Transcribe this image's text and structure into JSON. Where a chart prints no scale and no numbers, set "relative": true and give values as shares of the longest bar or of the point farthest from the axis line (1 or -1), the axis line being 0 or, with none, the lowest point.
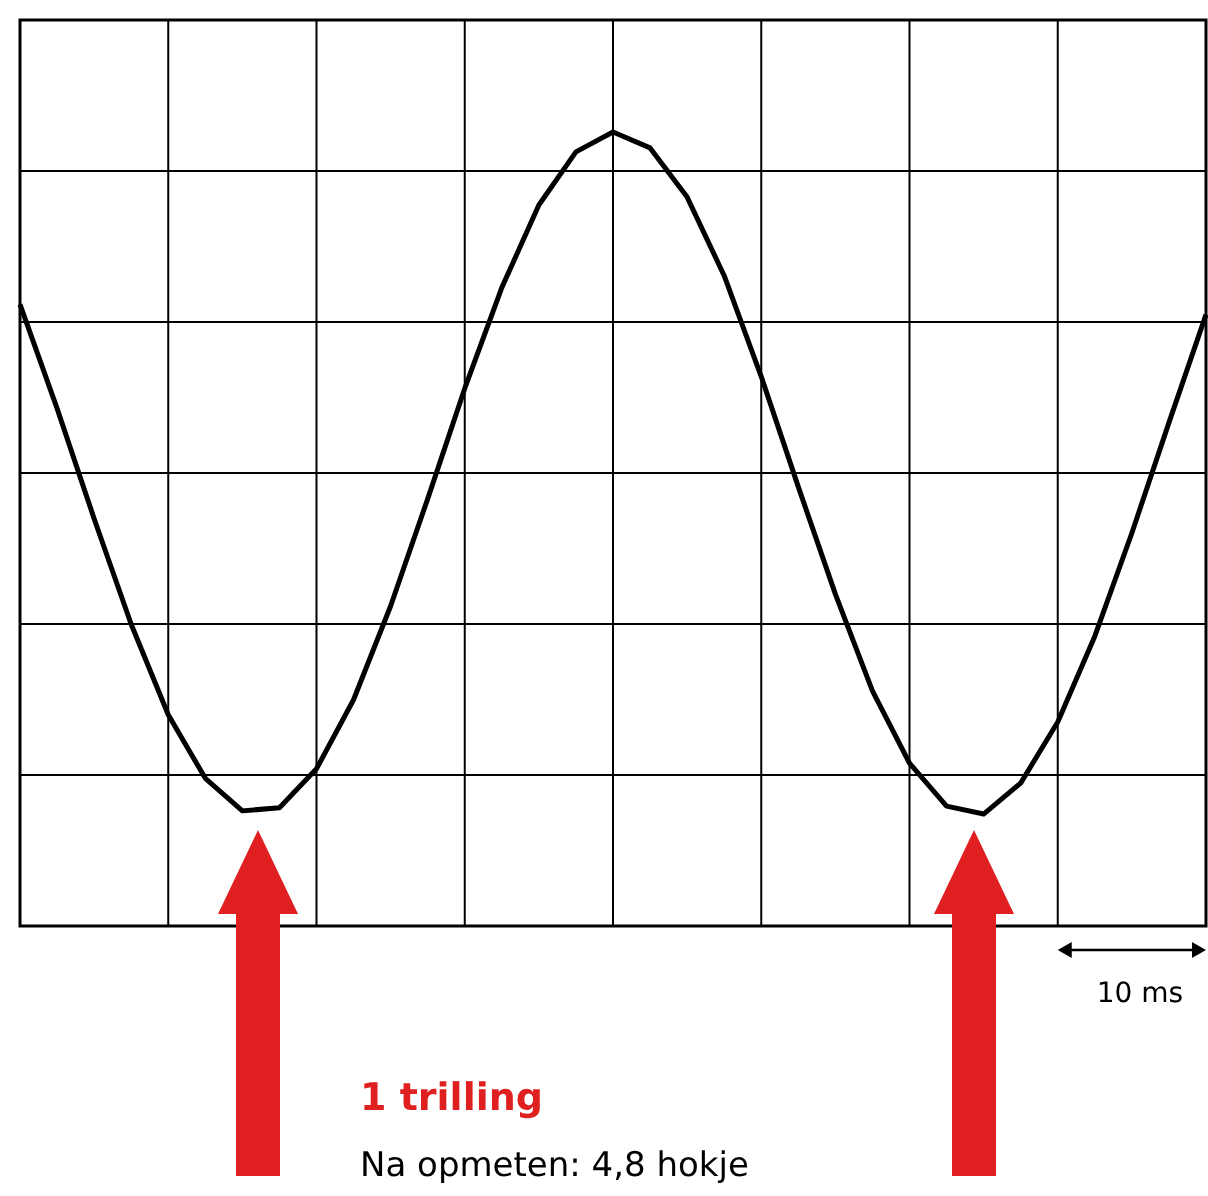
{
  "chart_data": {
    "type": "line",
    "relative": true,
    "grid": true,
    "marker": "none",
    "line_style": "solid",
    "categories": [
      null,
      null,
      null,
      null,
      null,
      null,
      null,
      null,
      null,
      null,
      null,
      null,
      null,
      null,
      null,
      null,
      null,
      null,
      null,
      null,
      null,
      null,
      null,
      null,
      null,
      null,
      null,
      null,
      null,
      null,
      null,
      null,
      null
    ],
    "series": [
      {
        "color": "#000000",
        "values": [
          0.783,
          0.652,
          0.513,
          0.38,
          0.266,
          0.186,
          0.145,
          0.149,
          0.198,
          0.285,
          0.403,
          0.538,
          0.677,
          0.804,
          0.908,
          0.975,
          1.0,
          0.98,
          0.918,
          0.819,
          0.692,
          0.553,
          0.418,
          0.296,
          0.205,
          0.151,
          0.141,
          0.18,
          0.257,
          0.365,
          0.495,
          0.634,
          0.77
        ]
      }
    ],
    "annotations": [
      "1 trilling",
      "Na opmeten: 4,8 hokje",
      "10 ms"
    ]
  }
}
